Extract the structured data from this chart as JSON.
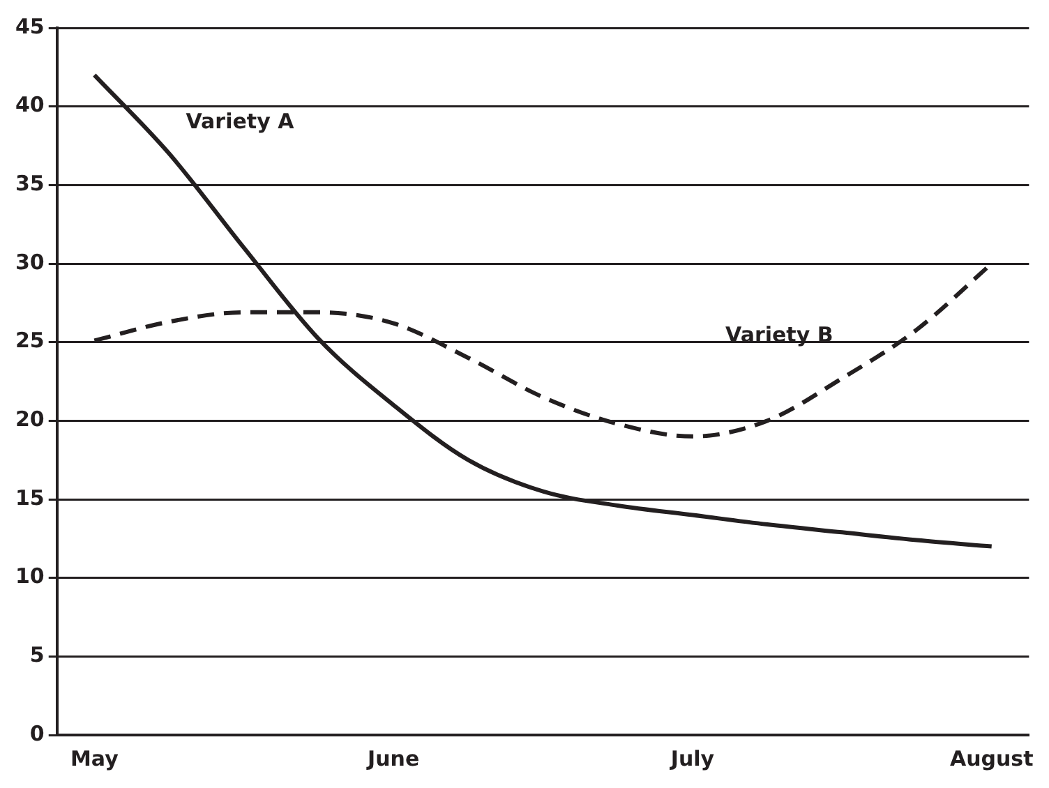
{
  "chart_data": {
    "type": "line",
    "categories": [
      "May",
      null,
      null,
      null,
      "June",
      null,
      null,
      null,
      "July",
      null,
      null,
      null,
      "August"
    ],
    "series": [
      {
        "name": "Variety A",
        "color": "#231f20",
        "line_style": "solid",
        "values": [
          42,
          37,
          31,
          25.2,
          21,
          17.5,
          15.5,
          14.6,
          14,
          13.4,
          12.9,
          12.4,
          12
        ]
      },
      {
        "name": "Variety B",
        "color": "#231f20",
        "line_style": "dashed",
        "values": [
          25.1,
          26.3,
          26.9,
          26.9,
          26.2,
          24,
          21.5,
          19.8,
          19,
          20,
          22.7,
          25.8,
          30
        ]
      }
    ],
    "ylim": [
      0,
      45
    ],
    "yticks": [
      0,
      5,
      10,
      15,
      20,
      25,
      30,
      35,
      40,
      45
    ],
    "grid": "y",
    "legend": false,
    "marker": "none"
  }
}
